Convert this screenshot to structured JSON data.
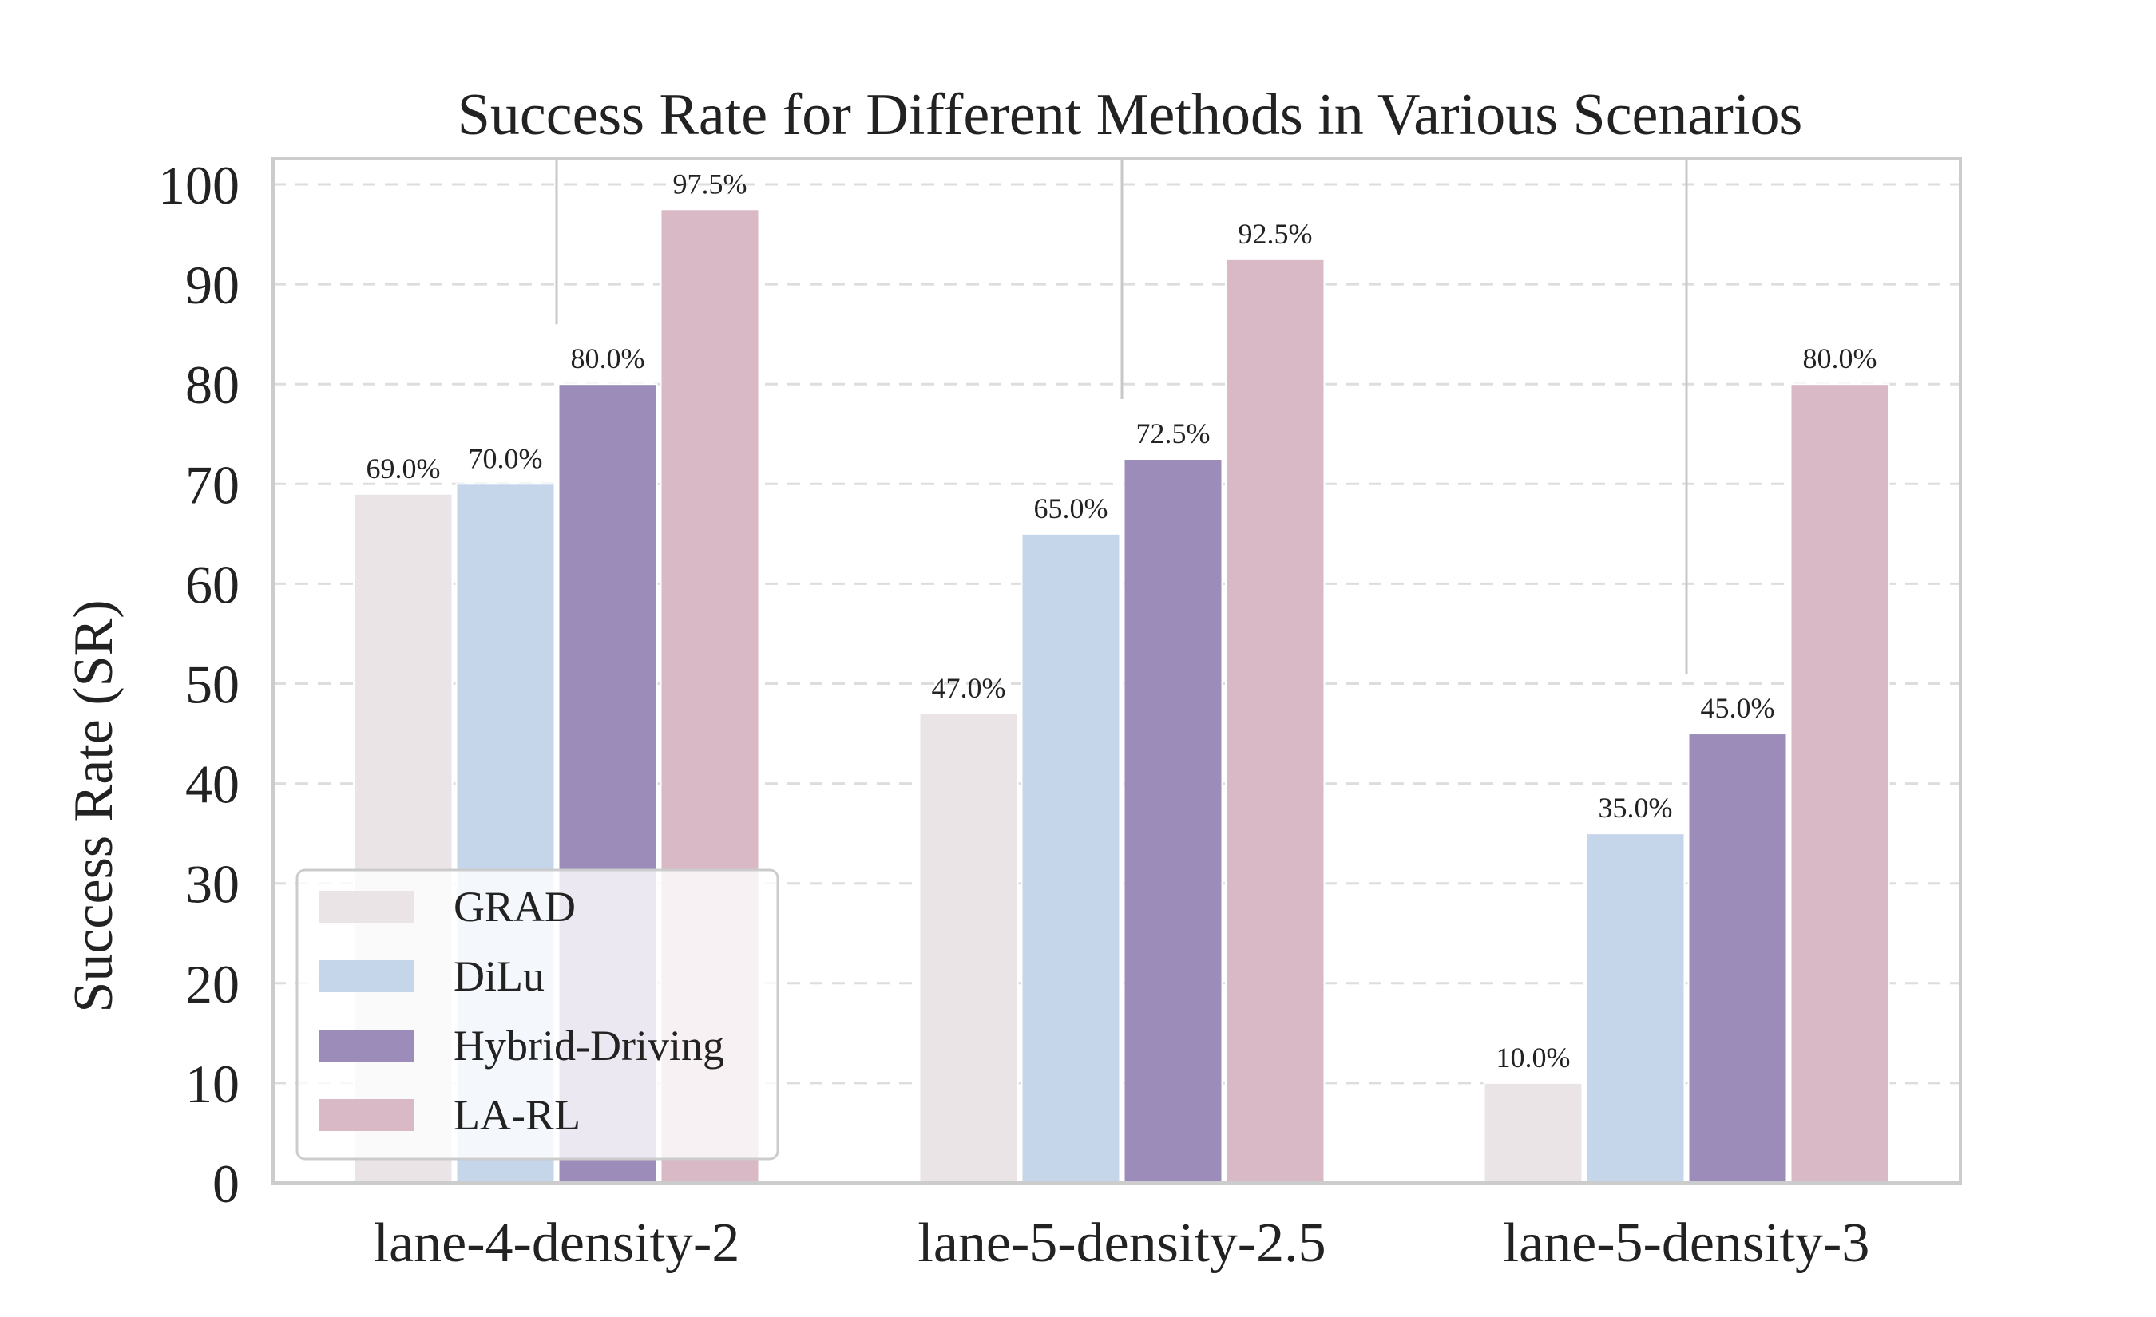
{
  "chart_data": {
    "type": "bar",
    "title": "Success Rate for Different Methods in Various Scenarios",
    "xlabel": "",
    "ylabel": "Success Rate (SR)",
    "ylim": [
      0,
      102
    ],
    "yticks": [
      0,
      10,
      20,
      30,
      40,
      50,
      60,
      70,
      80,
      90,
      100
    ],
    "grid": "horizontal dashed",
    "categories": [
      "lane-4-density-2",
      "lane-5-density-2.5",
      "lane-5-density-3"
    ],
    "series": [
      {
        "name": "GRAD",
        "color": "#ebe4e6",
        "values": [
          69.0,
          47.0,
          10.0
        ],
        "labels": [
          "69.0%",
          "47.0%",
          "10.0%"
        ]
      },
      {
        "name": "DiLu",
        "color": "#c5d5ea",
        "values": [
          70.0,
          65.0,
          35.0
        ],
        "labels": [
          "70.0%",
          "65.0%",
          "35.0%"
        ]
      },
      {
        "name": "Hybrid-Driving",
        "color": "#9b8cb9",
        "values": [
          80.0,
          72.5,
          45.0
        ],
        "labels": [
          "80.0%",
          "72.5%",
          "45.0%"
        ]
      },
      {
        "name": "LA-RL",
        "color": "#d9b9c5",
        "values": [
          97.5,
          92.5,
          80.0
        ],
        "labels": [
          "97.5%",
          "92.5%",
          "80.0%"
        ]
      }
    ],
    "legend": "lower-left"
  }
}
